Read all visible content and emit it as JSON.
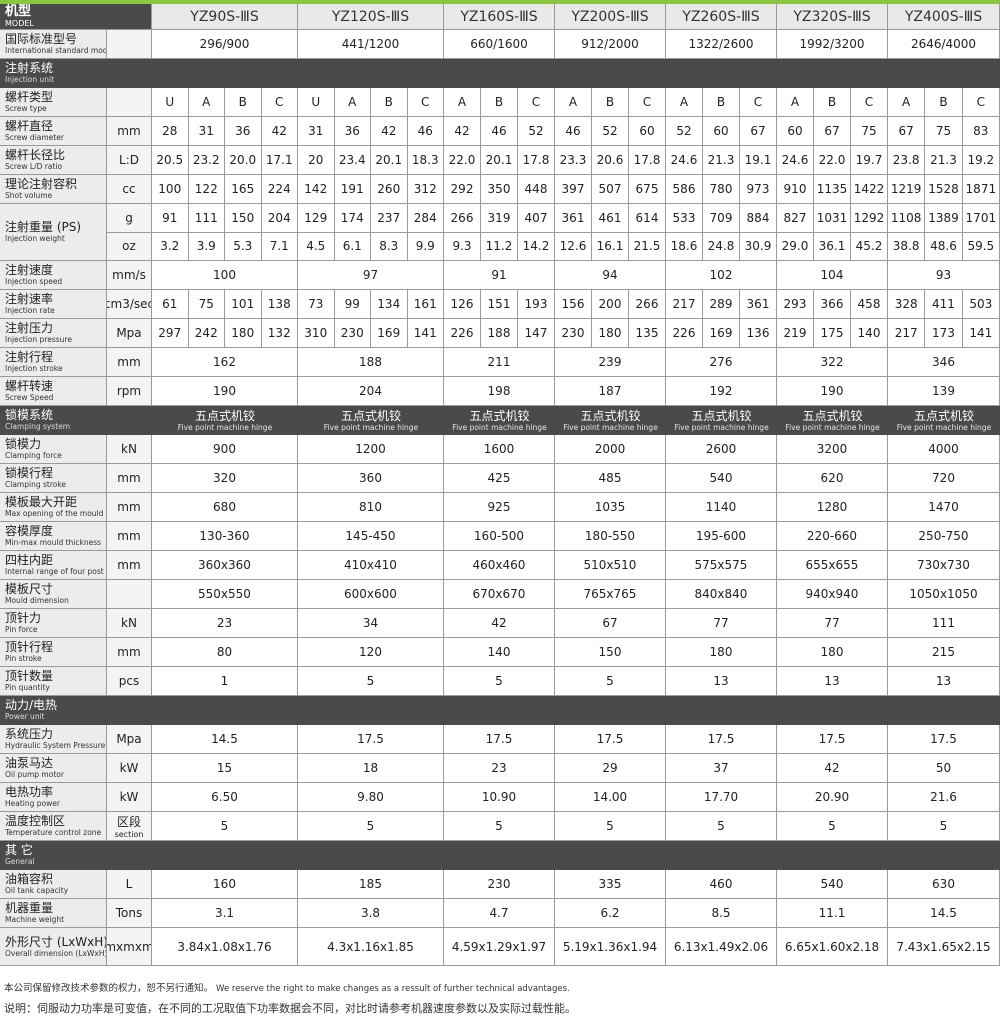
{
  "header": {
    "label": "机型",
    "label_en": "MODEL",
    "models": [
      "YZ90S-ⅢS",
      "YZ120S-ⅢS",
      "YZ160S-ⅢS",
      "YZ200S-ⅢS",
      "YZ260S-ⅢS",
      "YZ320S-ⅢS",
      "YZ400S-ⅢS"
    ]
  },
  "standard_model": {
    "label": "国际标准型号",
    "label_en": "International standard model",
    "values": [
      "296/900",
      "441/1200",
      "660/1600",
      "912/2000",
      "1322/2600",
      "1992/3200",
      "2646/4000"
    ]
  },
  "sections": [
    {
      "title": "注射系统",
      "title_en": "Injection unit",
      "rows": [
        {
          "label": "螺杆类型",
          "label_en": "Screw type",
          "values": [
            "U",
            "A",
            "B",
            "C",
            "U",
            "A",
            "B",
            "C",
            "A",
            "B",
            "C",
            "A",
            "B",
            "C",
            "A",
            "B",
            "C",
            "A",
            "B",
            "C",
            "A",
            "B",
            "C"
          ]
        },
        {
          "label": "螺杆直径",
          "label_en": "Screw diameter",
          "unit": "mm",
          "values": [
            "28",
            "31",
            "36",
            "42",
            "31",
            "36",
            "42",
            "46",
            "42",
            "46",
            "52",
            "46",
            "52",
            "60",
            "52",
            "60",
            "67",
            "60",
            "67",
            "75",
            "67",
            "75",
            "83"
          ]
        },
        {
          "label": "螺杆长径比",
          "label_en": "Screw L/D ratio",
          "unit": "L:D",
          "values": [
            "20.5",
            "23.2",
            "20.0",
            "17.1",
            "20",
            "23.4",
            "20.1",
            "18.3",
            "22.0",
            "20.1",
            "17.8",
            "23.3",
            "20.6",
            "17.8",
            "24.6",
            "21.3",
            "19.1",
            "24.6",
            "22.0",
            "19.7",
            "23.8",
            "21.3",
            "19.2"
          ]
        },
        {
          "label": "理论注射容积",
          "label_en": "Shot volume",
          "unit": "cc",
          "values": [
            "100",
            "122",
            "165",
            "224",
            "142",
            "191",
            "260",
            "312",
            "292",
            "350",
            "448",
            "397",
            "507",
            "675",
            "586",
            "780",
            "973",
            "910",
            "1135",
            "1422",
            "1219",
            "1528",
            "1871"
          ]
        },
        {
          "label": "注射重量 (PS)",
          "label_en": "Injection weight",
          "lines": [
            {
              "unit": "g",
              "values": [
                "91",
                "111",
                "150",
                "204",
                "129",
                "174",
                "237",
                "284",
                "266",
                "319",
                "407",
                "361",
                "461",
                "614",
                "533",
                "709",
                "884",
                "827",
                "1031",
                "1292",
                "1108",
                "1389",
                "1701"
              ]
            },
            {
              "unit": "oz",
              "values": [
                "3.2",
                "3.9",
                "5.3",
                "7.1",
                "4.5",
                "6.1",
                "8.3",
                "9.9",
                "9.3",
                "11.2",
                "14.2",
                "12.6",
                "16.1",
                "21.5",
                "18.6",
                "24.8",
                "30.9",
                "29.0",
                "36.1",
                "45.2",
                "38.8",
                "48.6",
                "59.5"
              ]
            }
          ]
        },
        {
          "label": "注射速度",
          "label_en": "Injection speed",
          "unit": "mm/s",
          "values": [
            "100",
            "97",
            "91",
            "94",
            "102",
            "104",
            "93"
          ]
        },
        {
          "label": "注射速率",
          "label_en": "Injection rate",
          "unit": "cm3/sec",
          "values": [
            "61",
            "75",
            "101",
            "138",
            "73",
            "99",
            "134",
            "161",
            "126",
            "151",
            "193",
            "156",
            "200",
            "266",
            "217",
            "289",
            "361",
            "293",
            "366",
            "458",
            "328",
            "411",
            "503"
          ]
        },
        {
          "label": "注射压力",
          "label_en": "Injection pressure",
          "unit": "Mpa",
          "values": [
            "297",
            "242",
            "180",
            "132",
            "310",
            "230",
            "169",
            "141",
            "226",
            "188",
            "147",
            "230",
            "180",
            "135",
            "226",
            "169",
            "136",
            "219",
            "175",
            "140",
            "217",
            "173",
            "141"
          ]
        },
        {
          "label": "注射行程",
          "label_en": "Injection stroke",
          "unit": "mm",
          "values": [
            "162",
            "188",
            "211",
            "239",
            "276",
            "322",
            "346"
          ]
        },
        {
          "label": "螺杆转速",
          "label_en": "Screw Speed",
          "unit": "rpm",
          "values": [
            "190",
            "204",
            "198",
            "187",
            "192",
            "190",
            "139"
          ]
        }
      ]
    },
    {
      "title": "锁模系统",
      "title_en": "Clamping system",
      "notes": [
        {
          "cn": "五点式机铰",
          "en": "Five point machine hinge"
        },
        {
          "cn": "五点式机铰",
          "en": "Five point machine hinge"
        },
        {
          "cn": "五点式机铰",
          "en": "Five point machine hinge"
        },
        {
          "cn": "五点式机铰",
          "en": "Five point machine hinge"
        },
        {
          "cn": "五点式机铰",
          "en": "Five point machine hinge"
        },
        {
          "cn": "五点式机铰",
          "en": "Five point machine hinge"
        },
        {
          "cn": "五点式机铰",
          "en": "Five point machine hinge"
        }
      ],
      "rows": [
        {
          "label": "锁模力",
          "label_en": "Clamping force",
          "unit": "kN",
          "values": [
            "900",
            "1200",
            "1600",
            "2000",
            "2600",
            "3200",
            "4000"
          ]
        },
        {
          "label": "锁模行程",
          "label_en": "Clamping stroke",
          "unit": "mm",
          "values": [
            "320",
            "360",
            "425",
            "485",
            "540",
            "620",
            "720"
          ]
        },
        {
          "label": "模板最大开距",
          "label_en": "Max opening of the mould",
          "unit": "mm",
          "values": [
            "680",
            "810",
            "925",
            "1035",
            "1140",
            "1280",
            "1470"
          ]
        },
        {
          "label": "容模厚度",
          "label_en": "Min-max mould thickness",
          "unit": "mm",
          "values": [
            "130-360",
            "145-450",
            "160-500",
            "180-550",
            "195-600",
            "220-660",
            "250-750"
          ]
        },
        {
          "label": "四柱内距",
          "label_en": "Internal range of four post",
          "unit": "mm",
          "values": [
            "360x360",
            "410x410",
            "460x460",
            "510x510",
            "575x575",
            "655x655",
            "730x730"
          ]
        },
        {
          "label": "模板尺寸",
          "label_en": "Mould dimension",
          "values": [
            "550x550",
            "600x600",
            "670x670",
            "765x765",
            "840x840",
            "940x940",
            "1050x1050"
          ]
        },
        {
          "label": "顶针力",
          "label_en": "Pin force",
          "unit": "kN",
          "values": [
            "23",
            "34",
            "42",
            "67",
            "77",
            "77",
            "111"
          ]
        },
        {
          "label": "顶针行程",
          "label_en": "Pin stroke",
          "unit": "mm",
          "values": [
            "80",
            "120",
            "140",
            "150",
            "180",
            "180",
            "215"
          ]
        },
        {
          "label": "顶针数量",
          "label_en": "Pin quantity",
          "unit": "pcs",
          "values": [
            "1",
            "5",
            "5",
            "5",
            "13",
            "13",
            "13"
          ]
        }
      ]
    },
    {
      "title": "动力/电热",
      "title_en": "Power unit",
      "rows": [
        {
          "label": "系统压力",
          "label_en": "Hydraulic System Pressure",
          "unit": "Mpa",
          "values": [
            "14.5",
            "17.5",
            "17.5",
            "17.5",
            "17.5",
            "17.5",
            "17.5"
          ]
        },
        {
          "label": "油泵马达",
          "label_en": "Oil pump motor",
          "unit": "kW",
          "values": [
            "15",
            "18",
            "23",
            "29",
            "37",
            "42",
            "50"
          ]
        },
        {
          "label": "电热功率",
          "label_en": "Heating power",
          "unit": "kW",
          "values": [
            "6.50",
            "9.80",
            "10.90",
            "14.00",
            "17.70",
            "20.90",
            "21.6"
          ]
        },
        {
          "label": "温度控制区",
          "label_en": "Temperature control zone",
          "unit": "区段",
          "unit_en": "section",
          "values": [
            "5",
            "5",
            "5",
            "5",
            "5",
            "5",
            "5"
          ]
        }
      ]
    },
    {
      "title": "其 它",
      "title_en": "General",
      "rows": [
        {
          "label": "油箱容积",
          "label_en": "Oil tank capacity",
          "unit": "L",
          "values": [
            "160",
            "185",
            "230",
            "335",
            "460",
            "540",
            "630"
          ]
        },
        {
          "label": "机器重量",
          "label_en": "Machine weight",
          "unit": "Tons",
          "values": [
            "3.1",
            "3.8",
            "4.7",
            "6.2",
            "8.5",
            "11.1",
            "14.5"
          ]
        },
        {
          "label": "外形尺寸 (LxWxH)",
          "label_en": "Overall dimension (LxWxH)",
          "unit": "mxmxm",
          "values": [
            "3.84x1.08x1.76",
            "4.3x1.16x1.85",
            "4.59x1.29x1.97",
            "5.19x1.36x1.94",
            "6.13x1.49x2.06",
            "6.65x1.60x2.18",
            "7.43x1.65x2.15"
          ]
        }
      ]
    }
  ],
  "footer": {
    "notice": "本公司保留修改技术参数的权力，恕不另行通知。",
    "notice_en": "We reserve the right to make changes as a ressult of further technical advantages.",
    "remark": "说明：伺服动力功率是可变值，在不同的工况取值下功率数据会不同，对比时请参考机器速度参数以及实际过载性能。"
  }
}
